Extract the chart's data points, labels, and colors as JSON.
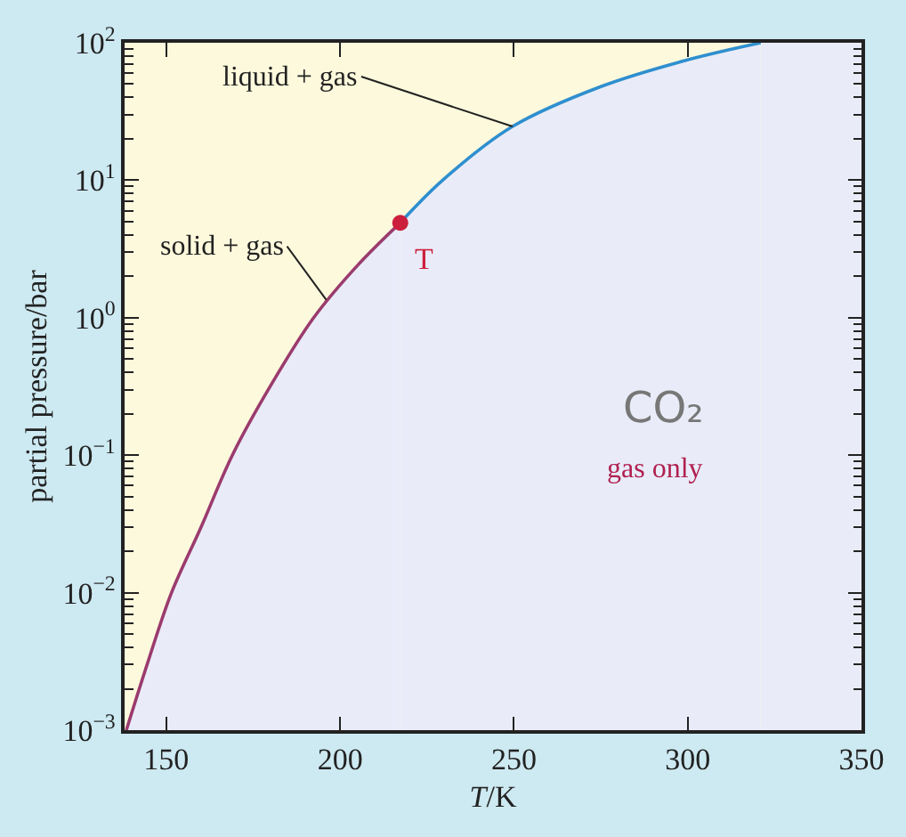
{
  "chart_data": {
    "type": "area",
    "xlabel": "T/K",
    "ylabel": "partial pressure/bar",
    "log": "y",
    "grid": false,
    "xlim": [
      138,
      350
    ],
    "xticks": [
      150,
      200,
      250,
      300,
      350
    ],
    "ylim": [
      0.001,
      100
    ],
    "bands": [
      {
        "axis": "y",
        "from": 0.001,
        "to": 100,
        "color": "#fdf9dc"
      },
      {
        "axis": "x",
        "from": 321,
        "to": 350,
        "color": "#e9ecf8"
      }
    ],
    "yticks": [
      {
        "value": 0.001,
        "label": "10$^{−3}$"
      },
      {
        "value": 0.01,
        "label": "10$^{−2}$"
      },
      {
        "value": 0.1,
        "label": "10$^{−1}$"
      },
      {
        "value": 1,
        "label": "10$^{0}$"
      },
      {
        "value": 10,
        "label": "10$^{1}$"
      },
      {
        "value": 100,
        "label": "10$^{2}$"
      }
    ],
    "series": [
      {
        "color": "#9b3b6e",
        "x": [
          138.5,
          145,
          151.5,
          160,
          169,
          180,
          192.4,
          205,
          217.3
        ],
        "values": [
          0.001,
          0.0033,
          0.01,
          0.03,
          0.1,
          0.32,
          1,
          2.4,
          4.9
        ]
      },
      {
        "color": "#2f8fcf",
        "x": [
          217.3,
          229.5,
          249.6,
          275,
          299,
          321
        ],
        "values": [
          4.9,
          10,
          24.6,
          48,
          74,
          100
        ]
      },
      {
        "type": "scatter",
        "marker": "circle",
        "color": "#cc1f3d",
        "x": [
          217.3
        ],
        "values": [
          4.9
        ]
      }
    ],
    "annotations": [
      {
        "text": "liquid + gas",
        "x": 249.6,
        "y": 24.6
      },
      {
        "text": "solid + gas",
        "x": 196,
        "y": 1.35
      },
      {
        "text": "T",
        "x": 217.3,
        "y": 4.9
      },
      "CO₂",
      "gas only"
    ]
  }
}
